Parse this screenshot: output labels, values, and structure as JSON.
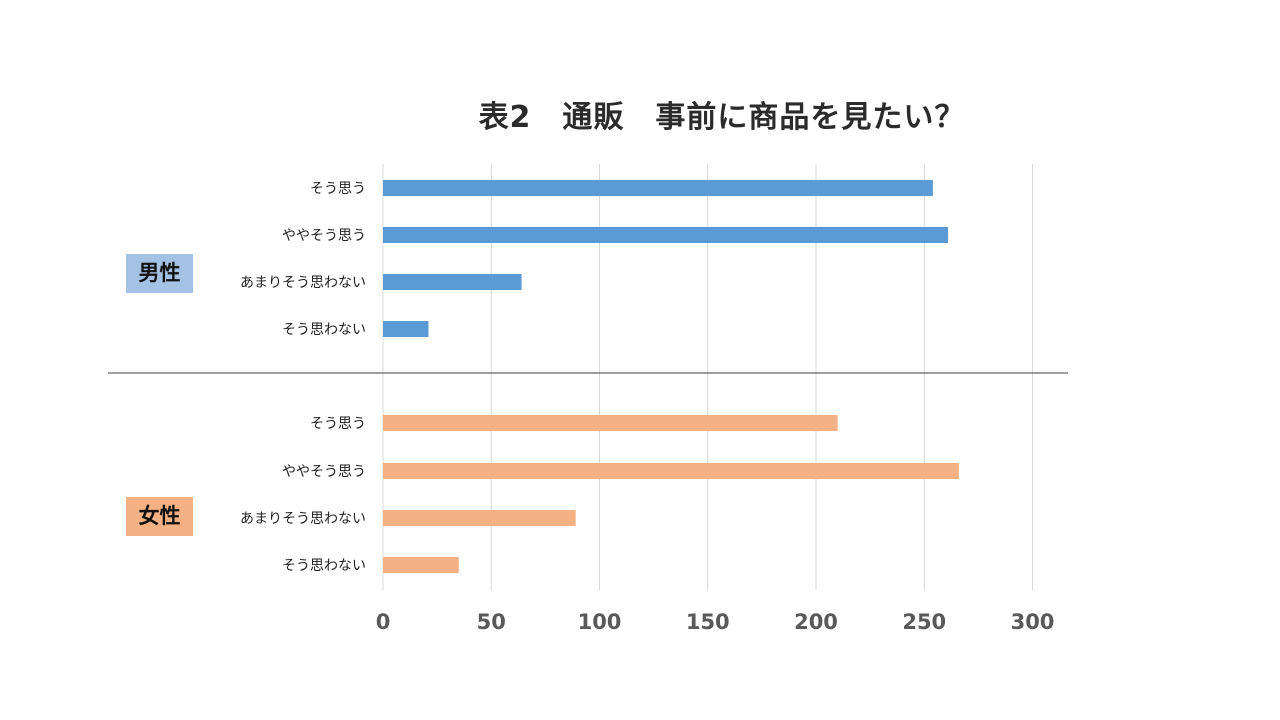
{
  "title": "表2　通販　事前に商品を見たい？",
  "chart_data": {
    "type": "bar",
    "orientation": "horizontal",
    "title": "表2　通販　事前に商品を見たい？",
    "xlim": [
      0,
      300
    ],
    "ticks": [
      0,
      50,
      100,
      150,
      200,
      250,
      300
    ],
    "grid": true,
    "groups": [
      {
        "label": "男性",
        "color": "#5b9bd5",
        "label_bg": "#a4c2e4",
        "categories": [
          "そう思う",
          "ややそう思う",
          "あまりそう思わない",
          "そう思わない"
        ],
        "values": [
          254,
          261,
          64,
          21
        ]
      },
      {
        "label": "女性",
        "color": "#f4b183",
        "label_bg": "#f4b183",
        "categories": [
          "そう思う",
          "ややそう思う",
          "あまりそう思わない",
          "そう思わない"
        ],
        "values": [
          210,
          266,
          89,
          35
        ]
      }
    ]
  }
}
